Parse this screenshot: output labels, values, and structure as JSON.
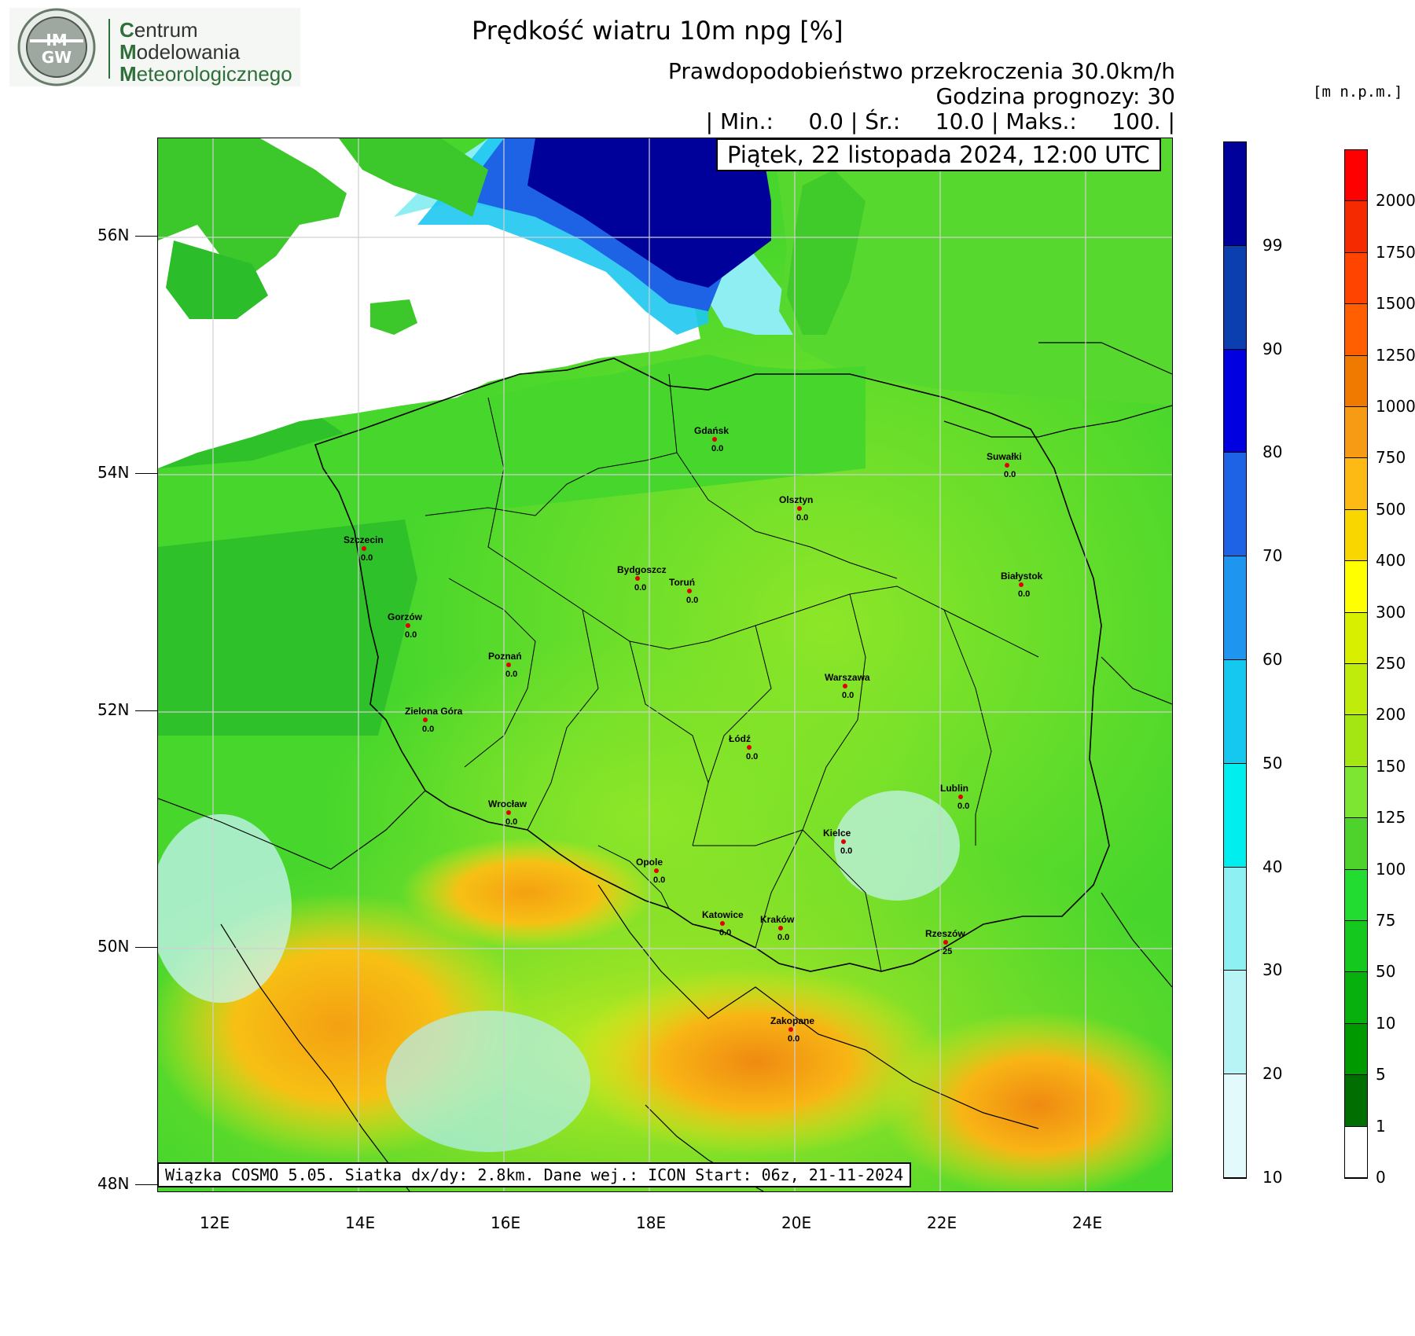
{
  "logo": {
    "badge_text": "IM GW",
    "line1_initial": "C",
    "line1_rest": "entrum",
    "line2_initial": "M",
    "line2_rest": "odelowania",
    "line3_initial": "M",
    "line3_rest": "eteorologicznego"
  },
  "header": {
    "title": "Prędkość wiatru 10m npg [%]",
    "line1": "Prawdopodobieństwo przekroczenia 30.0km/h",
    "line2": "Godzina prognozy: 30",
    "line3": "| Min.:     0.0 | Śr.:     10.0 | Maks.:     100. |",
    "datetime": "Piątek, 22 listopada 2024, 12:00 UTC",
    "unit_label": "[m  n.p.m.]"
  },
  "footer": {
    "text": "Wiązka COSMO 5.05. Siatka dx/dy: 2.8km. Dane wej.: ICON Start: 06z, 21-11-2024"
  },
  "axes": {
    "lat_labels": [
      "56N",
      "54N",
      "52N",
      "50N",
      "48N"
    ],
    "lon_labels": [
      "12E",
      "14E",
      "16E",
      "18E",
      "20E",
      "22E",
      "24E"
    ]
  },
  "colorbar_prob": {
    "labels": [
      "99",
      "90",
      "80",
      "70",
      "60",
      "50",
      "40",
      "30",
      "20",
      "10"
    ],
    "colors": [
      "#00009a",
      "#0b3fb0",
      "#0000e0",
      "#1e63e6",
      "#1e96f0",
      "#14c8f0",
      "#00eeee",
      "#8ef0f2",
      "#b6f4f6",
      "#e2fafc"
    ]
  },
  "colorbar_elev": {
    "labels": [
      "2000",
      "1750",
      "1500",
      "1250",
      "1000",
      "750",
      "500",
      "400",
      "300",
      "250",
      "200",
      "150",
      "125",
      "100",
      "75",
      "50",
      "10",
      "5",
      "1",
      "0"
    ],
    "colors": [
      "#ff0000",
      "#f52a00",
      "#ff4400",
      "#ff5f00",
      "#f07a00",
      "#f79a14",
      "#fdb914",
      "#fad600",
      "#ffff00",
      "#d8f000",
      "#bfec0a",
      "#a3e614",
      "#7de632",
      "#4ed22c",
      "#22dc32",
      "#14c81e",
      "#08b00e",
      "#009900",
      "#006e00",
      "#ffffff"
    ]
  },
  "cities": [
    {
      "name": "Gdańsk",
      "value": "0.0"
    },
    {
      "name": "Suwałki",
      "value": "0.0"
    },
    {
      "name": "Olsztyn",
      "value": "0.0"
    },
    {
      "name": "Szczecin",
      "value": "0.0"
    },
    {
      "name": "Bydgoszcz",
      "value": "0.0"
    },
    {
      "name": "Toruń",
      "value": "0.0"
    },
    {
      "name": "Białystok",
      "value": "0.0"
    },
    {
      "name": "Gorzów",
      "value": "0.0"
    },
    {
      "name": "Poznań",
      "value": "0.0"
    },
    {
      "name": "Warszawa",
      "value": "0.0"
    },
    {
      "name": "Zielona Góra",
      "value": "0.0"
    },
    {
      "name": "Łódź",
      "value": "0.0"
    },
    {
      "name": "Wrocław",
      "value": "0.0"
    },
    {
      "name": "Lublin",
      "value": "0.0"
    },
    {
      "name": "Kielce",
      "value": "0.0"
    },
    {
      "name": "Opole",
      "value": "0.0"
    },
    {
      "name": "Katowice",
      "value": "0.0"
    },
    {
      "name": "Kraków",
      "value": "0.0"
    },
    {
      "name": "Rzeszów",
      "value": "25"
    },
    {
      "name": "Zakopane",
      "value": "0.0"
    }
  ]
}
